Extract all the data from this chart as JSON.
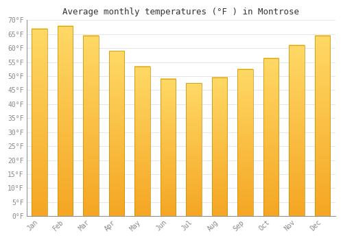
{
  "title": "Average monthly temperatures (°F ) in Montrose",
  "months": [
    "Jan",
    "Feb",
    "Mar",
    "Apr",
    "May",
    "Jun",
    "Jul",
    "Aug",
    "Sep",
    "Oct",
    "Nov",
    "Dec"
  ],
  "values": [
    67,
    68,
    64.5,
    59,
    53.5,
    49,
    47.5,
    49.5,
    52.5,
    56.5,
    61,
    64.5
  ],
  "bar_color_bottom": "#F5A623",
  "bar_color_top": "#FFD966",
  "bar_edge_color": "#C68A00",
  "background_color": "#ffffff",
  "plot_bg_color": "#ffffff",
  "ylim": [
    0,
    70
  ],
  "yticks": [
    0,
    5,
    10,
    15,
    20,
    25,
    30,
    35,
    40,
    45,
    50,
    55,
    60,
    65,
    70
  ],
  "ytick_labels": [
    "0°F",
    "5°F",
    "10°F",
    "15°F",
    "20°F",
    "25°F",
    "30°F",
    "35°F",
    "40°F",
    "45°F",
    "50°F",
    "55°F",
    "60°F",
    "65°F",
    "70°F"
  ],
  "grid_color": "#e0e0e8",
  "title_fontsize": 9,
  "tick_fontsize": 7,
  "tick_color": "#888888",
  "spine_color": "#888888",
  "bar_width": 0.6
}
